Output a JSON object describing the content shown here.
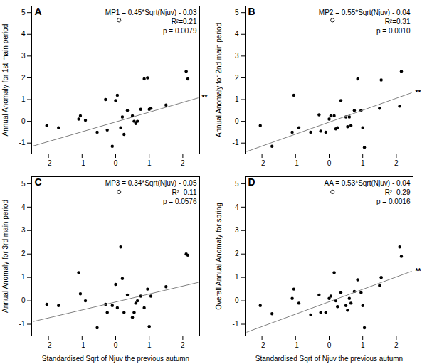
{
  "chart_data": [
    {
      "type": "scatter",
      "title": "A",
      "ylabel": "Annual Anomaly for 1st main period",
      "xlim": [
        -2.5,
        2.5
      ],
      "ylim": [
        -1.5,
        5.3
      ],
      "xticks": [
        -2,
        -1,
        0,
        1,
        2
      ],
      "yticks": [
        -1,
        0,
        1,
        2,
        3,
        4,
        5
      ],
      "grid": false,
      "series": [
        {
          "type": "scatter",
          "marker": "circle",
          "color": "#000000",
          "x": [
            -2.05,
            -1.7,
            -1.1,
            -1.05,
            -0.9,
            -0.55,
            -0.3,
            -0.25,
            -0.1,
            0.0,
            0.05,
            0.15,
            0.2,
            0.25,
            0.35,
            0.5,
            0.55,
            0.6,
            0.65,
            0.75,
            0.85,
            0.95,
            1.0,
            1.05,
            1.5,
            2.1,
            2.15
          ],
          "values": [
            -0.2,
            -0.3,
            0.1,
            0.25,
            0.05,
            -0.5,
            1.0,
            -0.4,
            -1.15,
            0.95,
            1.2,
            -0.3,
            0.2,
            -0.6,
            0.5,
            0.25,
            0.0,
            -0.1,
            0.0,
            0.55,
            1.95,
            2.0,
            0.55,
            0.6,
            0.75,
            2.3,
            1.95
          ]
        },
        {
          "type": "scatter",
          "marker": "open_circle",
          "color": "#000000",
          "x": [
            0.1
          ],
          "values": [
            4.65
          ]
        },
        {
          "type": "line",
          "color": "#808080",
          "x": [
            -2.45,
            2.45
          ],
          "values": [
            -1.1325,
            1.0725
          ]
        }
      ],
      "annotations": [
        {
          "text": "MP1 = 0.45*Sqrt(Njuv) - 0.03"
        },
        {
          "text": "R²=0.21"
        },
        {
          "text": "p = 0.0079"
        },
        {
          "text": "**",
          "x": 2.5,
          "y": 1.0725
        }
      ]
    },
    {
      "type": "scatter",
      "title": "B",
      "ylabel": "Annual Anomaly for 2nd main period",
      "xlim": [
        -2.5,
        2.5
      ],
      "ylim": [
        -1.5,
        5.3
      ],
      "xticks": [
        -2,
        -1,
        0,
        1,
        2
      ],
      "yticks": [
        -1,
        0,
        1,
        2,
        3,
        4,
        5
      ],
      "grid": false,
      "series": [
        {
          "type": "scatter",
          "marker": "circle",
          "color": "#000000",
          "x": [
            -2.05,
            -1.7,
            -1.1,
            -1.05,
            -0.9,
            -0.55,
            -0.3,
            -0.25,
            -0.1,
            0.0,
            0.05,
            0.15,
            0.2,
            0.25,
            0.35,
            0.5,
            0.55,
            0.6,
            0.65,
            0.75,
            0.85,
            0.95,
            1.0,
            1.05,
            1.5,
            1.55,
            2.1,
            2.15
          ],
          "values": [
            -0.2,
            -1.15,
            -0.5,
            1.2,
            -0.3,
            -0.5,
            0.3,
            -0.45,
            -0.5,
            0.1,
            0.25,
            0.25,
            -0.35,
            -0.3,
            0.95,
            0.2,
            -0.25,
            0.2,
            -0.2,
            0.5,
            1.95,
            0.5,
            -0.3,
            -1.2,
            0.6,
            1.9,
            0.7,
            2.3
          ]
        },
        {
          "type": "scatter",
          "marker": "open_circle",
          "color": "#000000",
          "x": [
            0.1
          ],
          "values": [
            4.65
          ]
        },
        {
          "type": "line",
          "color": "#808080",
          "x": [
            -2.45,
            2.45
          ],
          "values": [
            -1.3875,
            1.3075
          ]
        }
      ],
      "annotations": [
        {
          "text": "MP2 = 0.55*Sqrt(Njuv) - 0.04"
        },
        {
          "text": "R²=0.31"
        },
        {
          "text": "p = 0.0010"
        },
        {
          "text": "**",
          "x": 2.5,
          "y": 1.3075
        }
      ]
    },
    {
      "type": "scatter",
      "title": "C",
      "ylabel": "Annual Anomaly for 3rd main period",
      "xlabel": "Standardised Sqrt of Njuv the previous autumn",
      "xlim": [
        -2.5,
        2.5
      ],
      "ylim": [
        -1.5,
        5.3
      ],
      "xticks": [
        -2,
        -1,
        0,
        1,
        2
      ],
      "yticks": [
        -1,
        0,
        1,
        2,
        3,
        4,
        5
      ],
      "grid": false,
      "series": [
        {
          "type": "scatter",
          "marker": "circle",
          "color": "#000000",
          "x": [
            -2.05,
            -1.7,
            -1.1,
            -1.05,
            -0.9,
            -0.55,
            -0.3,
            -0.25,
            -0.1,
            0.0,
            0.05,
            0.15,
            0.2,
            0.25,
            0.35,
            0.5,
            0.55,
            0.6,
            0.65,
            0.75,
            0.85,
            0.95,
            1.0,
            1.05,
            1.5,
            2.1,
            2.15
          ],
          "values": [
            -0.15,
            -0.2,
            1.2,
            0.3,
            0.0,
            -1.15,
            -0.15,
            -0.5,
            -0.2,
            0.7,
            -0.3,
            2.3,
            0.95,
            -0.5,
            0.25,
            -0.7,
            -0.5,
            -0.1,
            0.0,
            0.2,
            -0.3,
            0.5,
            -1.1,
            0.2,
            0.6,
            2.0,
            1.95
          ]
        },
        {
          "type": "scatter",
          "marker": "open_circle",
          "color": "#000000",
          "x": [
            0.1
          ],
          "values": [
            4.65
          ]
        },
        {
          "type": "line",
          "color": "#808080",
          "x": [
            -2.45,
            2.45
          ],
          "values": [
            -0.883,
            0.783
          ]
        }
      ],
      "annotations": [
        {
          "text": "MP3 = 0.34*Sqrt(Njuv) - 0.05"
        },
        {
          "text": "R²=0.11"
        },
        {
          "text": "p = 0.0576"
        }
      ]
    },
    {
      "type": "scatter",
      "title": "D",
      "ylabel": "Overall Annual Anomaly for spring",
      "xlabel": "Standardised Sqrt of Njuv the previous autumn",
      "xlim": [
        -2.5,
        2.5
      ],
      "ylim": [
        -1.5,
        5.3
      ],
      "xticks": [
        -2,
        -1,
        0,
        1,
        2
      ],
      "yticks": [
        -1,
        0,
        1,
        2,
        3,
        4,
        5
      ],
      "grid": false,
      "series": [
        {
          "type": "scatter",
          "marker": "circle",
          "color": "#000000",
          "x": [
            -2.05,
            -1.7,
            -1.1,
            -1.05,
            -0.9,
            -0.55,
            -0.3,
            -0.25,
            -0.1,
            0.0,
            0.05,
            0.15,
            0.2,
            0.25,
            0.35,
            0.5,
            0.55,
            0.6,
            0.65,
            0.75,
            0.85,
            0.95,
            1.0,
            1.05,
            1.5,
            1.55,
            2.1,
            2.15
          ],
          "values": [
            -0.2,
            -0.55,
            0.1,
            0.5,
            -0.1,
            -0.6,
            0.25,
            -0.5,
            -0.5,
            0.1,
            0.2,
            1.2,
            0.0,
            -0.25,
            0.35,
            -0.2,
            -0.4,
            0.1,
            -0.1,
            0.4,
            0.9,
            0.35,
            -0.2,
            -1.15,
            0.65,
            1.0,
            2.3,
            1.9
          ]
        },
        {
          "type": "scatter",
          "marker": "open_circle",
          "color": "#000000",
          "x": [
            0.1
          ],
          "values": [
            4.65
          ]
        },
        {
          "type": "line",
          "color": "#808080",
          "x": [
            -2.45,
            2.45
          ],
          "values": [
            -1.3385,
            1.2585
          ]
        }
      ],
      "annotations": [
        {
          "text": "AA = 0.53*Sqrt(Njuv) - 0.04"
        },
        {
          "text": "R²=0.29"
        },
        {
          "text": "p = 0.0016"
        },
        {
          "text": "**",
          "x": 2.5,
          "y": 1.2585
        }
      ]
    }
  ]
}
